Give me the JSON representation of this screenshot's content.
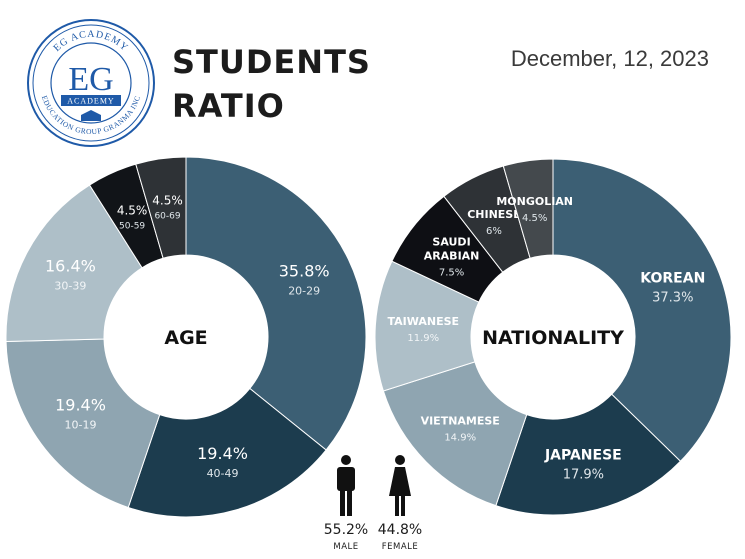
{
  "header": {
    "logo_top": "EG ACADEMY",
    "logo_main": "EG",
    "logo_band": "ACADEMY",
    "logo_bottom": "EDUCATION GROUP GRANMA INC",
    "title_line1": "STUDENTS",
    "title_line2": "RATIO",
    "date": "December, 12, 2023"
  },
  "gender": {
    "male_pct": "55.2%",
    "male_label": "MALE",
    "female_pct": "44.8%",
    "female_label": "FEMALE"
  },
  "chart_data": [
    {
      "type": "pie",
      "subtype": "donut",
      "title": "AGE",
      "slices": [
        {
          "label": "20-29",
          "value": 35.8,
          "value_label": "35.8%",
          "color": "#3c5f74"
        },
        {
          "label": "40-49",
          "value": 19.4,
          "value_label": "19.4%",
          "color": "#1c3c4e"
        },
        {
          "label": "10-19",
          "value": 19.4,
          "value_label": "19.4%",
          "color": "#8fa5b1"
        },
        {
          "label": "30-39",
          "value": 16.4,
          "value_label": "16.4%",
          "color": "#aebfc8"
        },
        {
          "label": "50-59",
          "value": 4.5,
          "value_label": "4.5%",
          "color": "#111418"
        },
        {
          "label": "60-69",
          "value": 4.5,
          "value_label": "4.5%",
          "color": "#2e3236"
        }
      ]
    },
    {
      "type": "pie",
      "subtype": "donut",
      "title": "NATIONALITY",
      "slices": [
        {
          "label": "KOREAN",
          "value": 37.3,
          "value_label": "37.3%",
          "color": "#3c5f74"
        },
        {
          "label": "JAPANESE",
          "value": 17.9,
          "value_label": "17.9%",
          "color": "#1c3c4e"
        },
        {
          "label": "VIETNAMESE",
          "value": 14.9,
          "value_label": "14.9%",
          "color": "#8fa5b1"
        },
        {
          "label": "TAIWANESE",
          "value": 11.9,
          "value_label": "11.9%",
          "color": "#aebfc8"
        },
        {
          "label": "SAUDI ARABIAN",
          "value": 7.5,
          "value_label": "7.5%",
          "color": "#0e0f14"
        },
        {
          "label": "CHINESE",
          "value": 6,
          "value_label": "6%",
          "color": "#2e3236"
        },
        {
          "label": "MONGOLIAN",
          "value": 4.5,
          "value_label": "4.5%",
          "color": "#44494d"
        }
      ]
    }
  ]
}
